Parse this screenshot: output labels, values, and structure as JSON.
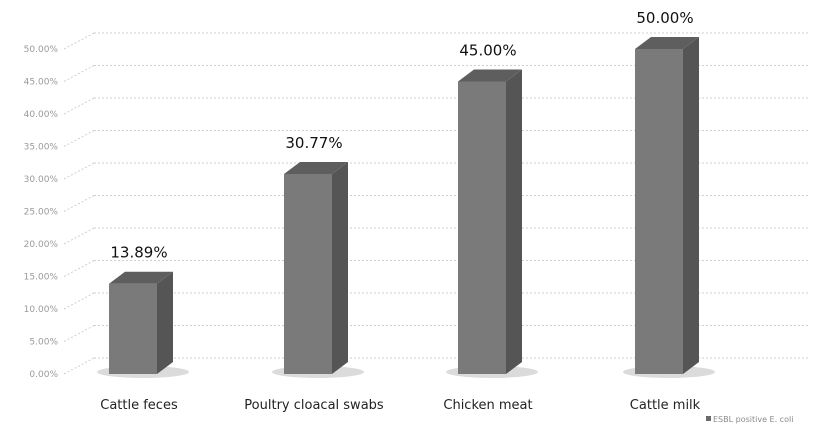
{
  "chart_data": {
    "type": "bar",
    "style": "3d-column",
    "categories": [
      "Cattle feces",
      "Poultry cloacal swabs",
      "Chicken meat",
      "Cattle milk"
    ],
    "series": [
      {
        "name": "ESBL positive E. coli",
        "values": [
          13.89,
          30.77,
          45.0,
          50.0
        ]
      }
    ],
    "data_labels": [
      "13.89%",
      "30.77%",
      "45.00%",
      "50.00%"
    ],
    "yticks": [
      "0.00%",
      "5.00%",
      "10.00%",
      "15.00%",
      "20.00%",
      "25.00%",
      "30.00%",
      "35.00%",
      "40.00%",
      "45.00%",
      "50.00%"
    ],
    "ylim": [
      0,
      50
    ],
    "grid": true,
    "legend_position": "bottom-right",
    "title": "",
    "xlabel": "",
    "ylabel": ""
  },
  "colors": {
    "bar_front": "#7a7a7a",
    "bar_side": "#555555",
    "bar_top": "#5e5e5e",
    "gridline": "#cfcfcf",
    "legend_marker": "#6a6a6a"
  }
}
